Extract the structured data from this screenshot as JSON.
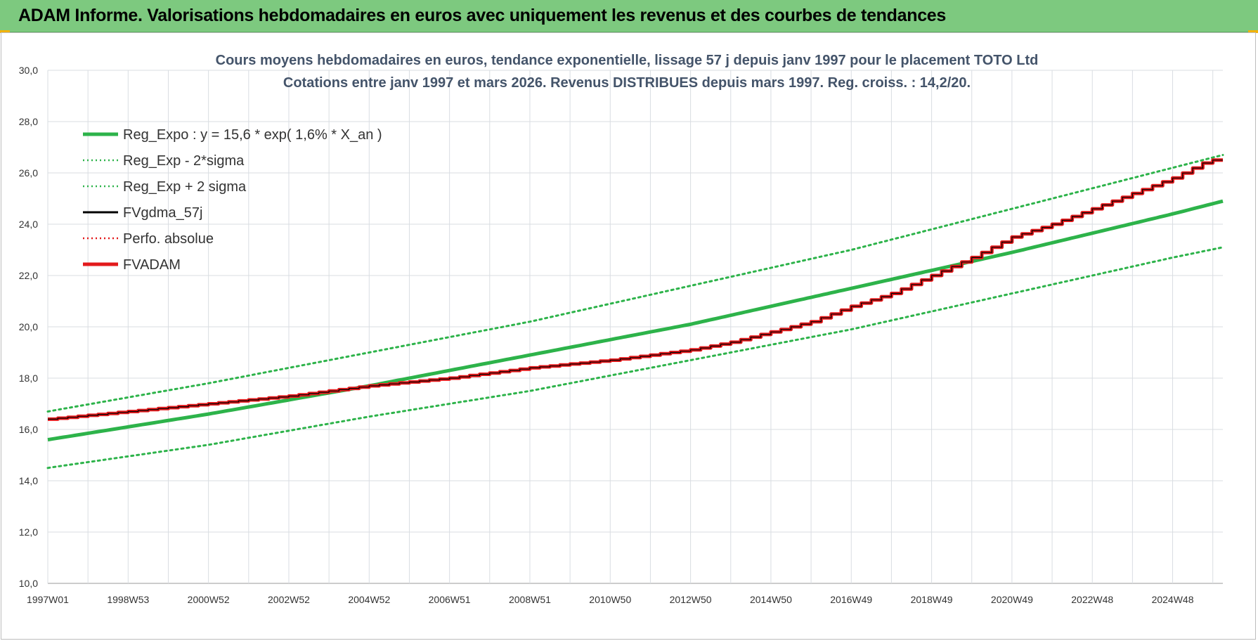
{
  "header": {
    "title": "ADAM Informe. Valorisations hebdomadaires en euros avec uniquement les revenus et des courbes de tendances"
  },
  "chart_data": {
    "type": "line",
    "title_line1": "Cours moyens hebdomadaires en euros, tendance exponentielle, lissage 57 j depuis janv 1997  pour le placement TOTO Ltd",
    "title_line2": "Cotations entre janv 1997 et mars 2026. Revenus DISTRIBUES depuis mars 1997. Reg. croiss. : 14,2/20.",
    "ylim": [
      10,
      30
    ],
    "y_ticks": [
      "10,0",
      "12,0",
      "14,0",
      "16,0",
      "18,0",
      "20,0",
      "22,0",
      "24,0",
      "26,0",
      "28,0",
      "30,0"
    ],
    "x_ticks": [
      "1997W01",
      "1998W53",
      "2000W52",
      "2002W52",
      "2004W52",
      "2006W51",
      "2008W51",
      "2010W50",
      "2012W50",
      "2014W50",
      "2016W49",
      "2018W49",
      "2020W49",
      "2022W48",
      "2024W48"
    ],
    "x_tick_years": [
      1997.0,
      1999.0,
      2001.0,
      2003.0,
      2005.0,
      2007.0,
      2009.0,
      2011.0,
      2013.0,
      2015.0,
      2017.0,
      2019.0,
      2021.0,
      2023.0,
      2025.0
    ],
    "x_range": [
      1997.0,
      2026.25
    ],
    "grid": true,
    "legend_position": "top-left",
    "legend": [
      {
        "key": "reg_expo",
        "label": "Reg_Expo : y = 15,6 * exp( 1,6% *  X_an )",
        "color": "#2db34a",
        "style": "solid-thick"
      },
      {
        "key": "reg_minus",
        "label": "Reg_Exp - 2*sigma",
        "color": "#2db34a",
        "style": "dotted"
      },
      {
        "key": "reg_plus",
        "label": "Reg_Exp + 2 sigma",
        "color": "#2db34a",
        "style": "dotted"
      },
      {
        "key": "fvgdma",
        "label": "FVgdma_57j",
        "color": "#000000",
        "style": "solid"
      },
      {
        "key": "perfo",
        "label": "Perfo. absolue",
        "color": "#e31a1c",
        "style": "dotted"
      },
      {
        "key": "fvadam",
        "label": "FVADAM",
        "color": "#e31a1c",
        "style": "solid-thick"
      }
    ],
    "series": [
      {
        "name": "Reg_Expo : y = 15,6 * exp( 1,6% *  X_an )",
        "x": [
          1997,
          2001,
          2005,
          2009,
          2013,
          2017,
          2021,
          2025,
          2026.25
        ],
        "values": [
          15.6,
          16.6,
          17.7,
          18.9,
          20.1,
          21.5,
          22.9,
          24.4,
          24.9
        ]
      },
      {
        "name": "Reg_Exp - 2*sigma",
        "x": [
          1997,
          2001,
          2005,
          2009,
          2013,
          2017,
          2021,
          2025,
          2026.25
        ],
        "values": [
          14.5,
          15.4,
          16.5,
          17.5,
          18.7,
          19.9,
          21.3,
          22.7,
          23.1
        ]
      },
      {
        "name": "Reg_Exp + 2 sigma",
        "x": [
          1997,
          2001,
          2005,
          2009,
          2013,
          2017,
          2021,
          2025,
          2026.25
        ],
        "values": [
          16.7,
          17.8,
          19.0,
          20.2,
          21.6,
          23.0,
          24.6,
          26.2,
          26.7
        ]
      },
      {
        "name": "FVADAM",
        "x": [
          1997,
          1999,
          2001,
          2003,
          2005,
          2007,
          2009,
          2011,
          2013,
          2014,
          2015,
          2016,
          2017,
          2018,
          2019,
          2020,
          2021,
          2022,
          2023,
          2024,
          2025,
          2025.9,
          2026.25
        ],
        "values": [
          16.4,
          16.7,
          17.0,
          17.3,
          17.7,
          18.0,
          18.4,
          18.7,
          19.1,
          19.4,
          19.8,
          20.2,
          20.8,
          21.3,
          22.0,
          22.7,
          23.5,
          24.0,
          24.6,
          25.2,
          25.8,
          26.5,
          26.5
        ]
      },
      {
        "name": "FVgdma_57j",
        "x": [
          1997,
          1999,
          2001,
          2003,
          2005,
          2007,
          2009,
          2011,
          2013,
          2014,
          2015,
          2016,
          2017,
          2018,
          2019,
          2020,
          2021,
          2022,
          2023,
          2024,
          2025,
          2025.9,
          2026.25
        ],
        "values": [
          16.4,
          16.7,
          17.0,
          17.3,
          17.7,
          18.0,
          18.4,
          18.7,
          19.1,
          19.4,
          19.8,
          20.2,
          20.8,
          21.3,
          22.0,
          22.7,
          23.5,
          24.0,
          24.6,
          25.2,
          25.8,
          26.5,
          26.5
        ]
      }
    ]
  }
}
